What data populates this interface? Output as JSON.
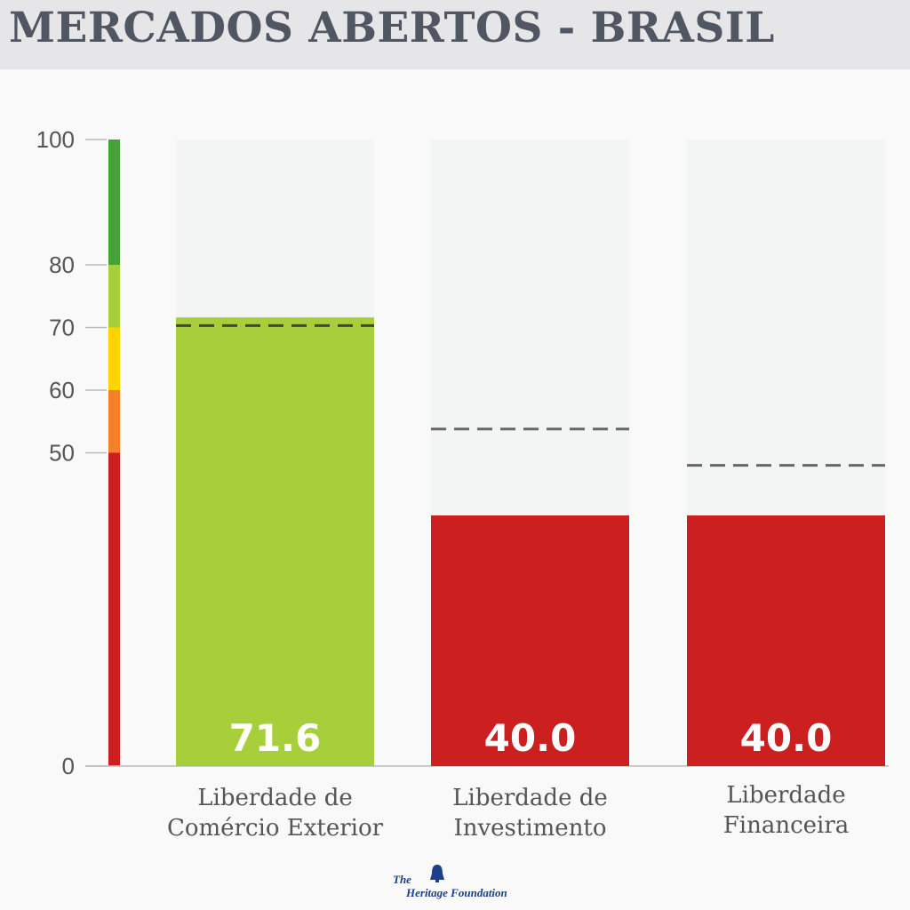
{
  "title": "MERCADOS ABERTOS - BRASIL",
  "logo": {
    "prefix": "The",
    "name": "Heritage Foundation"
  },
  "colors": {
    "green_dark": "#45a239",
    "green_light": "#a6cf3a",
    "yellow": "#ffd400",
    "orange": "#f4802a",
    "red": "#cc1f1f",
    "bar_bg": "#f3f4f4",
    "axis_text": "#555555"
  },
  "chart_data": {
    "type": "bar",
    "ylim": [
      0,
      100
    ],
    "y_ticks": [
      0,
      50,
      60,
      70,
      80,
      100
    ],
    "scale_bands": [
      {
        "from": 0,
        "to": 50,
        "color": "#cc1f1f"
      },
      {
        "from": 50,
        "to": 60,
        "color": "#f4802a"
      },
      {
        "from": 60,
        "to": 70,
        "color": "#ffd400"
      },
      {
        "from": 70,
        "to": 80,
        "color": "#a6cf3a"
      },
      {
        "from": 80,
        "to": 100,
        "color": "#45a239"
      }
    ],
    "categories": [
      [
        "Liberdade de",
        "Comércio Exterior"
      ],
      [
        "Liberdade de",
        "Investimento"
      ],
      [
        "Liberdade",
        "Financeira"
      ]
    ],
    "values": [
      71.6,
      40.0,
      40.0
    ],
    "value_labels": [
      "71.6",
      "40.0",
      "40.0"
    ],
    "bar_colors": [
      "#a6cf3a",
      "#cc1f1f",
      "#cc1f1f"
    ],
    "reference_values": [
      70.3,
      53.8,
      48.0
    ]
  }
}
